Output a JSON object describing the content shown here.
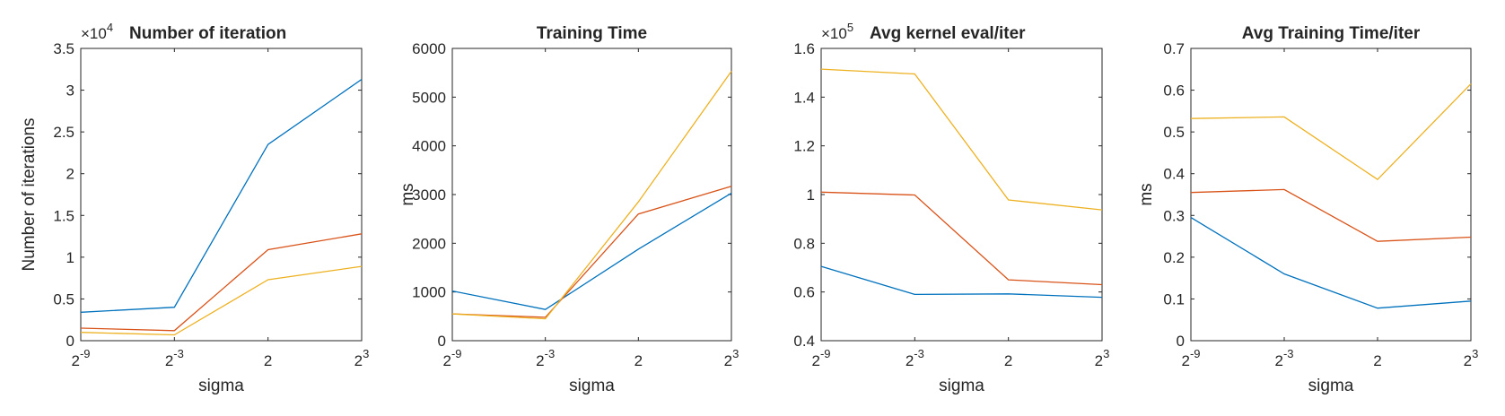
{
  "chart_data": [
    {
      "type": "line",
      "title": "Number of iteration",
      "xlabel": "sigma",
      "ylabel": "Number of iterations",
      "y_multiplier": {
        "base": "×10",
        "exp": "4"
      },
      "categories": [
        {
          "base": "2",
          "exp": "-9"
        },
        {
          "base": "2",
          "exp": "-3"
        },
        {
          "base": "2",
          "exp": ""
        },
        {
          "base": "2",
          "exp": "3"
        }
      ],
      "ylim": [
        0,
        3.5
      ],
      "yticks": [
        0,
        0.5,
        1,
        1.5,
        2,
        2.5,
        3,
        3.5
      ],
      "ytick_labels": [
        "0",
        "0.5",
        "1",
        "1.5",
        "2",
        "2.5",
        "3",
        "3.5"
      ],
      "series": [
        {
          "values": [
            0.34,
            0.4,
            2.35,
            3.13
          ],
          "color": "#0072BD"
        },
        {
          "values": [
            0.15,
            0.12,
            1.09,
            1.28
          ],
          "color": "#D95319"
        },
        {
          "values": [
            0.1,
            0.07,
            0.73,
            0.89
          ],
          "color": "#EDB120"
        }
      ]
    },
    {
      "type": "line",
      "title": "Training Time",
      "xlabel": "sigma",
      "ylabel": "ms",
      "categories": [
        {
          "base": "2",
          "exp": "-9"
        },
        {
          "base": "2",
          "exp": "-3"
        },
        {
          "base": "2",
          "exp": ""
        },
        {
          "base": "2",
          "exp": "3"
        }
      ],
      "ylim": [
        0,
        6000
      ],
      "yticks": [
        0,
        1000,
        2000,
        3000,
        4000,
        5000,
        6000
      ],
      "ytick_labels": [
        "0",
        "1000",
        "2000",
        "3000",
        "4000",
        "5000",
        "6000"
      ],
      "series": [
        {
          "values": [
            1020,
            640,
            1880,
            3030
          ],
          "color": "#0072BD"
        },
        {
          "values": [
            550,
            480,
            2600,
            3170
          ],
          "color": "#D95319"
        },
        {
          "values": [
            550,
            450,
            2850,
            5530
          ],
          "color": "#EDB120"
        }
      ]
    },
    {
      "type": "line",
      "title": "Avg kernel eval/iter",
      "xlabel": "sigma",
      "ylabel": "",
      "y_multiplier": {
        "base": "×10",
        "exp": "5"
      },
      "categories": [
        {
          "base": "2",
          "exp": "-9"
        },
        {
          "base": "2",
          "exp": "-3"
        },
        {
          "base": "2",
          "exp": ""
        },
        {
          "base": "2",
          "exp": "3"
        }
      ],
      "ylim": [
        0.4,
        1.6
      ],
      "yticks": [
        0.4,
        0.6,
        0.8,
        1.0,
        1.2,
        1.4,
        1.6
      ],
      "ytick_labels": [
        "0.4",
        "0.6",
        "0.8",
        "1",
        "1.2",
        "1.4",
        "1.6"
      ],
      "series": [
        {
          "values": [
            0.705,
            0.59,
            0.592,
            0.578
          ],
          "color": "#0072BD"
        },
        {
          "values": [
            1.01,
            0.998,
            0.65,
            0.63
          ],
          "color": "#D95319"
        },
        {
          "values": [
            1.515,
            1.495,
            0.978,
            0.937
          ],
          "color": "#EDB120"
        }
      ]
    },
    {
      "type": "line",
      "title": "Avg Training Time/iter",
      "xlabel": "sigma",
      "ylabel": "ms",
      "categories": [
        {
          "base": "2",
          "exp": "-9"
        },
        {
          "base": "2",
          "exp": "-3"
        },
        {
          "base": "2",
          "exp": ""
        },
        {
          "base": "2",
          "exp": "3"
        }
      ],
      "ylim": [
        0,
        0.7
      ],
      "yticks": [
        0,
        0.1,
        0.2,
        0.3,
        0.4,
        0.5,
        0.6,
        0.7
      ],
      "ytick_labels": [
        "0",
        "0.1",
        "0.2",
        "0.3",
        "0.4",
        "0.5",
        "0.6",
        "0.7"
      ],
      "series": [
        {
          "values": [
            0.295,
            0.16,
            0.078,
            0.095
          ],
          "color": "#0072BD"
        },
        {
          "values": [
            0.355,
            0.362,
            0.238,
            0.248
          ],
          "color": "#D95319"
        },
        {
          "values": [
            0.532,
            0.536,
            0.386,
            0.615
          ],
          "color": "#EDB120"
        }
      ]
    }
  ]
}
